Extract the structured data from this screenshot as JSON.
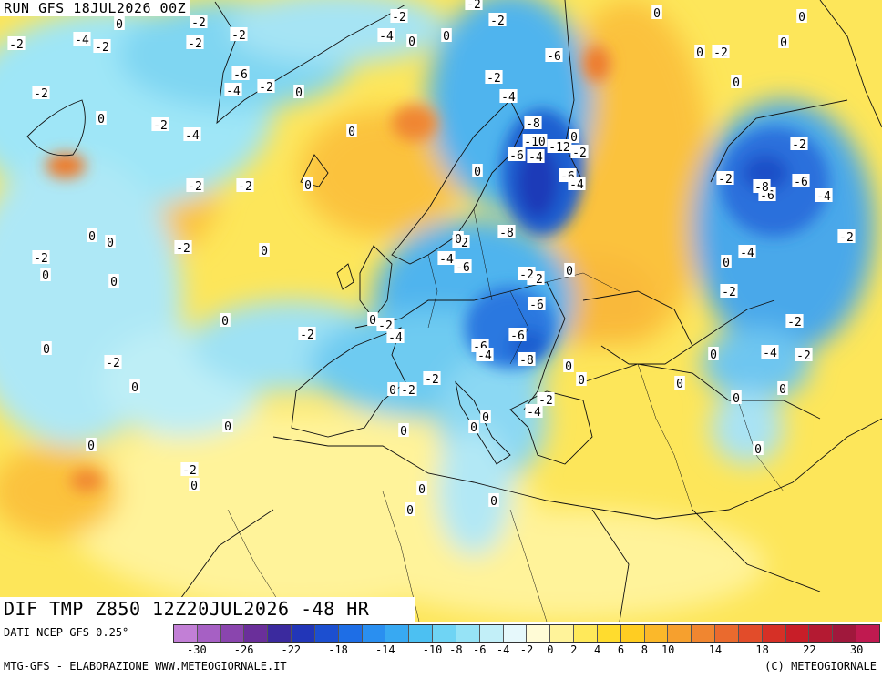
{
  "header": {
    "run_label": "RUN GFS 18JUL2026 00Z"
  },
  "map": {
    "title": "DIF TMP Z850 12Z20JUL2026 -48 HR",
    "colors": {
      "ocean_cold": "#9fe6f7",
      "cold": "#4fc3ef",
      "colder": "#1f7fe0",
      "coldest": "#1c3bb8",
      "neutral_warm": "#fff5a8",
      "warm": "#ffdc3a",
      "warmer": "#f9b93a",
      "hot": "#ee7a2c",
      "border": "#111111"
    },
    "labels": [
      {
        "t": "-2",
        "id": "l1"
      },
      {
        "t": "-4",
        "id": "l2"
      },
      {
        "t": "-2",
        "id": "l3"
      },
      {
        "t": "0",
        "id": "l4"
      },
      {
        "t": "-2",
        "id": "l5"
      },
      {
        "t": "-2",
        "id": "l6"
      },
      {
        "t": "-4",
        "id": "l7"
      },
      {
        "t": "0",
        "id": "l8"
      },
      {
        "t": "-6",
        "id": "l9"
      },
      {
        "t": "-4",
        "id": "l10"
      },
      {
        "t": "-2",
        "id": "l11"
      },
      {
        "t": "0",
        "id": "l12"
      },
      {
        "t": "-2",
        "id": "l13"
      },
      {
        "t": "-2",
        "id": "l14"
      },
      {
        "t": "-4",
        "id": "l15"
      },
      {
        "t": "0",
        "id": "l16"
      },
      {
        "t": "-2",
        "id": "l17"
      },
      {
        "t": "-2",
        "id": "l18"
      },
      {
        "t": "0",
        "id": "l19"
      },
      {
        "t": "0",
        "id": "l20"
      },
      {
        "t": "0",
        "id": "l21"
      },
      {
        "t": "-2",
        "id": "l22"
      },
      {
        "t": "-2",
        "id": "l23"
      },
      {
        "t": "0",
        "id": "l24"
      },
      {
        "t": "0",
        "id": "l25"
      },
      {
        "t": "0",
        "id": "l26"
      },
      {
        "t": "-2",
        "id": "l27"
      },
      {
        "t": "0",
        "id": "l28"
      },
      {
        "t": "0",
        "id": "l29"
      },
      {
        "t": "-2",
        "id": "l30"
      },
      {
        "t": "0",
        "id": "l31"
      },
      {
        "t": "-2",
        "id": "l32"
      },
      {
        "t": "0",
        "id": "l33"
      },
      {
        "t": "0",
        "id": "l34"
      },
      {
        "t": "0",
        "id": "l35"
      },
      {
        "t": "-2",
        "id": "l36"
      },
      {
        "t": "0",
        "id": "l37"
      },
      {
        "t": "-4",
        "id": "l38"
      },
      {
        "t": "-6",
        "id": "l39"
      },
      {
        "t": "-2",
        "id": "l40"
      },
      {
        "t": "-2",
        "id": "l41"
      },
      {
        "t": "-4",
        "id": "l42"
      },
      {
        "t": "-8",
        "id": "l43"
      },
      {
        "t": "-10",
        "id": "l44"
      },
      {
        "t": "-12",
        "id": "l45"
      },
      {
        "t": "-2",
        "id": "l46"
      },
      {
        "t": "-6",
        "id": "l47"
      },
      {
        "t": "-6",
        "id": "l48"
      },
      {
        "t": "-4",
        "id": "l49"
      },
      {
        "t": "0",
        "id": "l50"
      },
      {
        "t": "0",
        "id": "l51"
      },
      {
        "t": "-8",
        "id": "l52"
      },
      {
        "t": "-2",
        "id": "l53"
      },
      {
        "t": "-4",
        "id": "l54"
      },
      {
        "t": "-6",
        "id": "l55"
      },
      {
        "t": "-2",
        "id": "l56"
      },
      {
        "t": "0",
        "id": "l57"
      },
      {
        "t": "-6",
        "id": "l58"
      },
      {
        "t": "-2",
        "id": "l59"
      },
      {
        "t": "-4",
        "id": "l60"
      },
      {
        "t": "-6",
        "id": "l61"
      },
      {
        "t": "-6",
        "id": "l62"
      },
      {
        "t": "-4",
        "id": "l63"
      },
      {
        "t": "-8",
        "id": "l64"
      },
      {
        "t": "0",
        "id": "l65"
      },
      {
        "t": "-2",
        "id": "l66"
      },
      {
        "t": "0",
        "id": "l67"
      },
      {
        "t": "-2",
        "id": "l68"
      },
      {
        "t": "-2",
        "id": "l69"
      },
      {
        "t": "-4",
        "id": "l70"
      },
      {
        "t": "0",
        "id": "l71"
      },
      {
        "t": "0",
        "id": "l72"
      },
      {
        "t": "0",
        "id": "l73"
      },
      {
        "t": "0",
        "id": "l74"
      },
      {
        "t": "0",
        "id": "l75"
      },
      {
        "t": "-2",
        "id": "l76"
      },
      {
        "t": "0",
        "id": "l77"
      },
      {
        "t": "-2",
        "id": "l78"
      },
      {
        "t": "-2",
        "id": "l79"
      },
      {
        "t": "-6",
        "id": "l80"
      },
      {
        "t": "-8",
        "id": "l81"
      },
      {
        "t": "-6",
        "id": "l82"
      },
      {
        "t": "-4",
        "id": "l83"
      },
      {
        "t": "-2",
        "id": "l84"
      },
      {
        "t": "-4",
        "id": "l85"
      },
      {
        "t": "0",
        "id": "l86"
      },
      {
        "t": "-2",
        "id": "l87"
      },
      {
        "t": "-2",
        "id": "l88"
      },
      {
        "t": "-2",
        "id": "l89"
      },
      {
        "t": "-4",
        "id": "l90"
      },
      {
        "t": "-2",
        "id": "l91"
      },
      {
        "t": "0",
        "id": "l92"
      },
      {
        "t": "0",
        "id": "l93"
      },
      {
        "t": "0",
        "id": "l94"
      },
      {
        "t": "0",
        "id": "l95"
      },
      {
        "t": "0",
        "id": "l96"
      },
      {
        "t": "0",
        "id": "l97"
      },
      {
        "t": "0",
        "id": "l98"
      },
      {
        "t": "-2",
        "id": "l99"
      },
      {
        "t": "0",
        "id": "l100"
      },
      {
        "t": "0",
        "id": "l101"
      },
      {
        "t": "0",
        "id": "l102"
      },
      {
        "t": "0",
        "id": "l103"
      },
      {
        "t": "-2",
        "id": "l104"
      },
      {
        "t": "0",
        "id": "l105"
      },
      {
        "t": "0",
        "id": "l106"
      },
      {
        "t": "0",
        "id": "l107"
      }
    ]
  },
  "legend": {
    "source": "DATI NCEP GFS 0.25°",
    "ticks": [
      "-30",
      "-26",
      "-22",
      "-18",
      "-14",
      "-10",
      "-8",
      "-6",
      "-4",
      "-2",
      "0",
      "2",
      "4",
      "6",
      "8",
      "10",
      "14",
      "18",
      "22",
      "30"
    ],
    "swatches": [
      "#c27fd6",
      "#a660c4",
      "#8a45ae",
      "#6a2f9a",
      "#3b2a9e",
      "#2236b8",
      "#1c4fd0",
      "#1e6ee6",
      "#2a8ff0",
      "#38a9f2",
      "#4cc0f2",
      "#6fd4f4",
      "#96e3f6",
      "#c2eff8",
      "#e6f8fb",
      "#fffbd6",
      "#fff39a",
      "#ffe95a",
      "#ffdc2e",
      "#ffcd22",
      "#fbb82a",
      "#f6a02e",
      "#f08630",
      "#ea6a2e",
      "#e24c2a",
      "#d63026",
      "#c81e28",
      "#b41a32",
      "#a0183c",
      "#c01a50"
    ],
    "footer_left": "MTG-GFS - ELABORAZIONE WWW.METEOGIORNALE.IT",
    "footer_right": "(C) METEOGIORNALE"
  }
}
